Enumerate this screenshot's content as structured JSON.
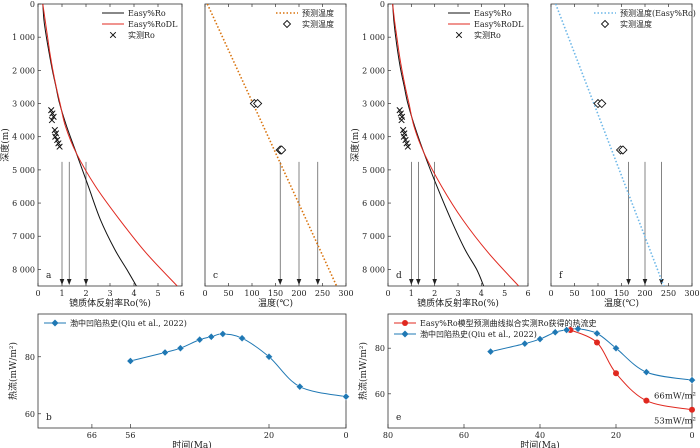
{
  "chart_data": [
    {
      "panel": "a",
      "type": "line",
      "xlabel": "镜质体反射率Ro(%)",
      "ylabel": "深度(m)",
      "xlim": [
        0,
        6
      ],
      "ylim": [
        0,
        8500
      ],
      "xticks": [
        0,
        1,
        2,
        3,
        4,
        5,
        6
      ],
      "yticks": [
        0,
        1000,
        2000,
        3000,
        4000,
        5000,
        6000,
        7000,
        8000
      ],
      "ytick_labels": [
        "0",
        "1 000",
        "2 000",
        "3 000",
        "4 000",
        "5 000",
        "6 000",
        "7 000",
        "8 000"
      ],
      "legend_position": "top-right",
      "series": [
        {
          "name": "Easy%Ro",
          "color": "#111111",
          "kind": "line",
          "x": [
            0.2,
            0.25,
            0.35,
            0.47,
            0.6,
            0.75,
            0.9,
            1.2,
            1.6,
            2.1,
            2.6,
            3.2,
            3.7,
            4.1
          ],
          "y": [
            0,
            500,
            1000,
            1500,
            2000,
            2500,
            3000,
            3700,
            4500,
            5500,
            6500,
            7400,
            8000,
            8500
          ]
        },
        {
          "name": "Easy%RoDL",
          "color": "#e0281f",
          "kind": "line",
          "x": [
            0.2,
            0.3,
            0.4,
            0.5,
            0.62,
            0.76,
            0.92,
            1.15,
            1.6,
            2.4,
            3.4,
            4.5,
            5.8
          ],
          "y": [
            0,
            500,
            1000,
            1500,
            2000,
            2500,
            3000,
            3700,
            4500,
            5500,
            6500,
            7500,
            8500
          ]
        },
        {
          "name": "实测Ro",
          "color": "#111111",
          "kind": "marker-x",
          "x": [
            0.55,
            0.6,
            0.65,
            0.58,
            0.7,
            0.75,
            0.72,
            0.8,
            0.85,
            0.9
          ],
          "y": [
            3200,
            3300,
            3400,
            3500,
            3800,
            3900,
            4000,
            4100,
            4200,
            4300
          ]
        }
      ],
      "arrows_x": [
        1.0,
        1.3,
        2.0
      ],
      "panel_label": "a"
    },
    {
      "panel": "c",
      "type": "line",
      "xlabel": "温度(℃)",
      "xlim": [
        0,
        300
      ],
      "ylim": [
        0,
        8500
      ],
      "xticks": [
        0,
        50,
        100,
        150,
        200,
        250,
        300
      ],
      "legend_position": "top-right",
      "series": [
        {
          "name": "预测温度",
          "color": "#d9730d",
          "kind": "dotted",
          "x": [
            5,
            280
          ],
          "y": [
            0,
            8500
          ]
        },
        {
          "name": "实测温度",
          "color": "#111111",
          "kind": "marker-diamond",
          "x": [
            105,
            112,
            160,
            163
          ],
          "y": [
            3000,
            3000,
            4400,
            4400
          ]
        }
      ],
      "arrows_x": [
        160,
        200,
        240
      ],
      "panel_label": "c"
    },
    {
      "panel": "d",
      "type": "line",
      "xlabel": "镜质体反射率Ro(%)",
      "ylabel": "深度(m)",
      "xlim": [
        0,
        6
      ],
      "ylim": [
        0,
        8500
      ],
      "xticks": [
        0,
        1,
        2,
        3,
        4,
        5,
        6
      ],
      "yticks": [
        0,
        1000,
        2000,
        3000,
        4000,
        5000,
        6000,
        7000,
        8000
      ],
      "ytick_labels": [
        "0",
        "1 000",
        "2 000",
        "3 000",
        "4 000",
        "5 000",
        "6 000",
        "7 000",
        "8 000"
      ],
      "legend_position": "top-right",
      "series": [
        {
          "name": "Easy%Ro",
          "color": "#111111",
          "kind": "line",
          "x": [
            0.2,
            0.25,
            0.33,
            0.43,
            0.55,
            0.7,
            0.85,
            1.15,
            1.6,
            2.1,
            2.7,
            3.3,
            3.8,
            4.1
          ],
          "y": [
            0,
            500,
            1000,
            1500,
            2000,
            2500,
            3000,
            3700,
            4600,
            5500,
            6500,
            7400,
            8000,
            8500
          ]
        },
        {
          "name": "Easy%RoDL",
          "color": "#e0281f",
          "kind": "line",
          "x": [
            0.2,
            0.28,
            0.38,
            0.48,
            0.6,
            0.74,
            0.9,
            1.12,
            1.55,
            2.3,
            3.2,
            4.3,
            5.6
          ],
          "y": [
            0,
            500,
            1000,
            1500,
            2000,
            2500,
            3000,
            3700,
            4500,
            5500,
            6500,
            7500,
            8500
          ]
        },
        {
          "name": "实测Ro",
          "color": "#111111",
          "kind": "marker-x",
          "x": [
            0.5,
            0.55,
            0.6,
            0.58,
            0.65,
            0.7,
            0.68,
            0.75,
            0.8,
            0.85
          ],
          "y": [
            3200,
            3300,
            3400,
            3500,
            3800,
            3900,
            4000,
            4100,
            4200,
            4300
          ]
        }
      ],
      "arrows_x": [
        1.0,
        1.3,
        2.0
      ],
      "panel_label": "d"
    },
    {
      "panel": "f",
      "type": "line",
      "xlabel": "温度(℃)",
      "xlim": [
        0,
        300
      ],
      "ylim": [
        0,
        8500
      ],
      "xticks": [
        0,
        50,
        100,
        150,
        200,
        250,
        300
      ],
      "legend_position": "top-right",
      "series": [
        {
          "name": "预测温度(Easy%Ro)",
          "color": "#6db7e8",
          "kind": "dotted",
          "x": [
            10,
            240
          ],
          "y": [
            0,
            8500
          ]
        },
        {
          "name": "实测温度",
          "color": "#111111",
          "kind": "marker-diamond",
          "x": [
            100,
            108,
            148,
            153
          ],
          "y": [
            3000,
            3000,
            4400,
            4400
          ]
        }
      ],
      "arrows_x": [
        165,
        200,
        235
      ],
      "panel_label": "f"
    },
    {
      "panel": "b",
      "type": "line",
      "xlabel": "时间(Ma)",
      "ylabel": "热流(mW/m²)",
      "xlim": [
        80,
        0
      ],
      "ylim": [
        55,
        95
      ],
      "xticks": [
        66,
        56,
        20,
        0
      ],
      "yticks": [
        60,
        80
      ],
      "legend_position": "top-left",
      "series": [
        {
          "name": "渤中凹陷热史(Qiu et al., 2022)",
          "color": "#1f78b4",
          "kind": "line-diamond",
          "x": [
            56,
            47,
            43,
            38,
            35,
            32,
            27,
            20,
            12,
            0
          ],
          "y": [
            78.5,
            81.5,
            83,
            86,
            87,
            88,
            86.5,
            80,
            69.5,
            66
          ]
        }
      ],
      "panel_label": "b"
    },
    {
      "panel": "e",
      "type": "line",
      "xlabel": "时间(Ma)",
      "ylabel": "热流(mW/m²)",
      "xlim": [
        80,
        0
      ],
      "ylim": [
        45,
        95
      ],
      "xticks": [
        80,
        60,
        40,
        20,
        0
      ],
      "yticks": [
        60,
        80
      ],
      "legend_position": "top-left",
      "series": [
        {
          "name": "Easy%Ro模型预测曲线拟合实测Ro获得的热流史",
          "color": "#e0281f",
          "kind": "line-circle",
          "x": [
            32,
            25,
            20,
            12,
            0
          ],
          "y": [
            88,
            82.5,
            69,
            57,
            53
          ]
        },
        {
          "name": "渤中凹陷热史(Qiu et al., 2022)",
          "color": "#1f78b4",
          "kind": "line-diamond",
          "x": [
            53,
            44,
            40,
            36,
            33,
            30,
            25,
            20,
            12,
            0
          ],
          "y": [
            78.5,
            82,
            84,
            87,
            88,
            88.5,
            86.5,
            80,
            69.5,
            66
          ]
        }
      ],
      "annotations": [
        "66mW/m²",
        "53mW/m²"
      ],
      "panel_label": "e"
    }
  ]
}
